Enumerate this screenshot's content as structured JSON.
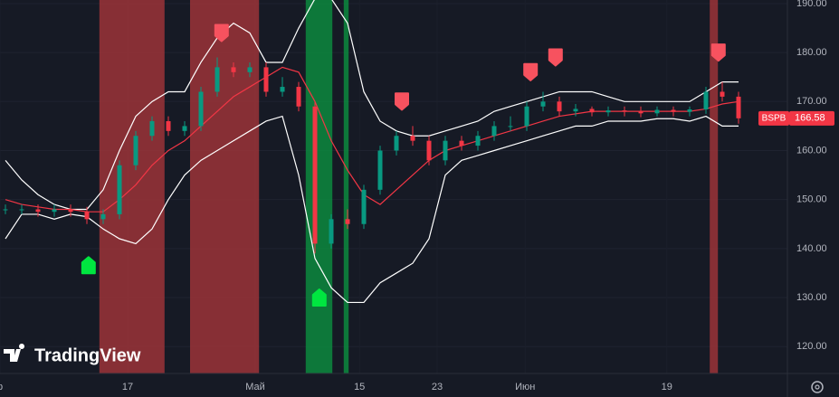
{
  "chart_data": {
    "type": "candlestick",
    "symbol": "BSPB",
    "watermark": "TradingView",
    "x": [
      1,
      4,
      7,
      10,
      13,
      16,
      19,
      22,
      25,
      28,
      31,
      34,
      37,
      40,
      43,
      46,
      49,
      52,
      55,
      58,
      61,
      64,
      67,
      70,
      73,
      76,
      79,
      82,
      85,
      88,
      91,
      94,
      97,
      100,
      103,
      106,
      109,
      112,
      115,
      118,
      121,
      124,
      127,
      130,
      133,
      136
    ],
    "open": [
      148,
      148,
      148,
      147.5,
      148,
      147.5,
      146,
      147,
      157,
      163,
      166,
      164,
      165,
      172,
      177,
      176,
      177,
      172,
      173,
      169,
      141,
      146,
      145,
      152,
      160,
      163,
      162,
      158,
      162,
      161,
      163,
      165,
      165,
      169,
      170,
      168,
      168.5,
      167.8,
      168.2,
      168,
      167.6,
      168.3,
      167.9,
      168.4,
      172,
      171
    ],
    "high": [
      149,
      149,
      149,
      149,
      149,
      148.5,
      148,
      158,
      164,
      167,
      167,
      166,
      173,
      179,
      178,
      178,
      178,
      175,
      174,
      170,
      147,
      148,
      153,
      161,
      164,
      165,
      163,
      163,
      163,
      164,
      166,
      167,
      170,
      172,
      171,
      169.5,
      169,
      169,
      169,
      169,
      169,
      169,
      169,
      173,
      174,
      172
    ],
    "low": [
      147,
      147,
      146.5,
      146.5,
      146.5,
      145,
      145,
      146,
      156,
      162,
      163,
      163,
      164,
      171,
      175,
      175,
      171,
      171,
      168,
      139,
      140,
      144,
      144,
      151,
      159,
      161,
      157,
      157,
      160,
      160,
      162,
      164,
      164,
      168,
      167,
      167,
      167,
      167,
      167,
      166.8,
      167,
      167,
      167,
      167.5,
      170,
      165.5
    ],
    "close": [
      148,
      148,
      147.5,
      148,
      147.5,
      146,
      147,
      157,
      163,
      166,
      164,
      165,
      172,
      177,
      176,
      177,
      172,
      173,
      169,
      141,
      146,
      145,
      152,
      160,
      163,
      162,
      158,
      162,
      161,
      163,
      165,
      165,
      169,
      170,
      168,
      168.5,
      167.8,
      168.2,
      168,
      167.6,
      168.3,
      167.9,
      168.4,
      172,
      171,
      166.58
    ],
    "up_color": "#089981",
    "down_color": "#f23645",
    "bands": {
      "upper": [
        158,
        154,
        151,
        149,
        148,
        148,
        152,
        160,
        167,
        170,
        172,
        172,
        178,
        183,
        186,
        184,
        178,
        178,
        185,
        191,
        191,
        186,
        172,
        166,
        164,
        163,
        163,
        164,
        165,
        166,
        168,
        169,
        170,
        171,
        172,
        172,
        172,
        171,
        170,
        170,
        170,
        170,
        170,
        172,
        174,
        174
      ],
      "middle": [
        150,
        149,
        148.5,
        148,
        148,
        147.5,
        147.5,
        150,
        153,
        157,
        160,
        162,
        165,
        168,
        171,
        173,
        175,
        177,
        176,
        170,
        162,
        156,
        151,
        149,
        152,
        155,
        158,
        160,
        161,
        162,
        163,
        164,
        165,
        166,
        167,
        167.5,
        168,
        168,
        168,
        168,
        168,
        168,
        168,
        168.5,
        169.5,
        170
      ],
      "lower": [
        142,
        147,
        147,
        146,
        147,
        146.5,
        144,
        142,
        141,
        144,
        150,
        155,
        158,
        160,
        162,
        164,
        166,
        167,
        155,
        138,
        132,
        129,
        129,
        133,
        135,
        137,
        142,
        155,
        158,
        159,
        160,
        161,
        162,
        163,
        164,
        165,
        165,
        166,
        166,
        166,
        166.5,
        166.5,
        166,
        167,
        165,
        165
      ],
      "color": "#ffffff",
      "middle_color": "#f23645"
    },
    "zones": [
      {
        "start": 18.3,
        "end": 30.3,
        "color": "#9b3438"
      },
      {
        "start": 35,
        "end": 47.7,
        "color": "#9b3438"
      },
      {
        "start": 56.3,
        "end": 61.2,
        "color": "#0c8a3e"
      },
      {
        "start": 63.3,
        "end": 64.2,
        "color": "#0c8a3e"
      },
      {
        "start": 130.7,
        "end": 132.2,
        "color": "#9b3438"
      }
    ],
    "signals": [
      {
        "x": 16.3,
        "y": 136.6,
        "direction": "up",
        "color": "#00e640"
      },
      {
        "x": 58.8,
        "y": 130,
        "direction": "up",
        "color": "#00e640"
      },
      {
        "x": 40.8,
        "y": 184,
        "direction": "down",
        "color": "#f7525f"
      },
      {
        "x": 74,
        "y": 170,
        "direction": "down",
        "color": "#f7525f"
      },
      {
        "x": 97.7,
        "y": 176,
        "direction": "down",
        "color": "#f7525f"
      },
      {
        "x": 102.3,
        "y": 179,
        "direction": "down",
        "color": "#f7525f"
      },
      {
        "x": 132.3,
        "y": 180,
        "direction": "down",
        "color": "#f7525f"
      }
    ],
    "xlim": [
      0,
      145
    ],
    "xticks": [
      {
        "value": 0,
        "label": "р"
      },
      {
        "value": 23.5,
        "label": "17"
      },
      {
        "value": 47,
        "label": "Май"
      },
      {
        "value": 66.2,
        "label": "15"
      },
      {
        "value": 80.5,
        "label": "23"
      },
      {
        "value": 96.7,
        "label": "Июн"
      },
      {
        "value": 122.8,
        "label": "19"
      }
    ],
    "ylim": [
      114.5,
      190.73
    ],
    "yticks": [
      {
        "value": 120,
        "label": "120.00"
      },
      {
        "value": 130,
        "label": "130.00"
      },
      {
        "value": 140,
        "label": "140.00"
      },
      {
        "value": 150,
        "label": "150.00"
      },
      {
        "value": 160,
        "label": "160.00"
      },
      {
        "value": 170,
        "label": "170.00"
      },
      {
        "value": 180,
        "label": "180.00"
      },
      {
        "value": 190,
        "label": "190.00"
      }
    ],
    "grid": true
  }
}
